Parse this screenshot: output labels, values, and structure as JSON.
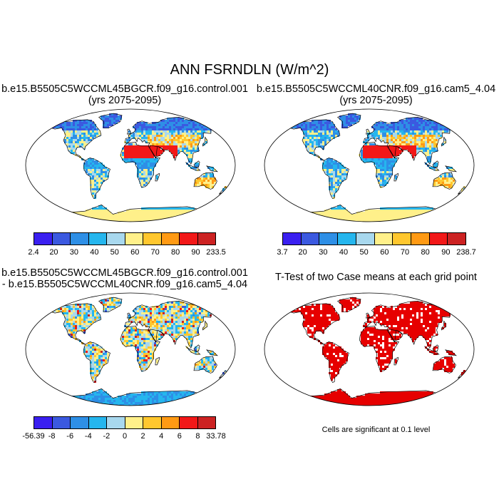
{
  "main_title": "ANN FSRNDLN (W/m^2)",
  "panels": [
    {
      "title_line1": "b.e15.B5505C5WCCML45BGCR.f09_g16.control.001",
      "title_line2": "(yrs 2075-2095)",
      "colorbar": {
        "labels": [
          "2.4",
          "20",
          "30",
          "40",
          "50",
          "60",
          "70",
          "80",
          "90",
          "233.5"
        ],
        "colors": [
          "#3a1ff0",
          "#3b59e0",
          "#2e8fe6",
          "#25b6ee",
          "#a8d8ee",
          "#fff08a",
          "#ffc72e",
          "#ff9a14",
          "#f21818",
          "#cc2222"
        ]
      }
    },
    {
      "title_line1": "b.e15.B5505C5WCCML40CNR.f09_g16.cam5_4.04",
      "title_line2": "(yrs 2075-2095)",
      "colorbar": {
        "labels": [
          "3.7",
          "20",
          "30",
          "40",
          "50",
          "60",
          "70",
          "80",
          "90",
          "238.7"
        ],
        "colors": [
          "#3a1ff0",
          "#3b59e0",
          "#2e8fe6",
          "#25b6ee",
          "#a8d8ee",
          "#fff08a",
          "#ffc72e",
          "#ff9a14",
          "#f21818",
          "#cc2222"
        ]
      }
    },
    {
      "title_line1": "b.e15.B5505C5WCCML45BGCR.f09_g16.control.001",
      "title_line2": "- b.e15.B5505C5WCCML40CNR.f09_g16.cam5_4.04",
      "colorbar": {
        "labels": [
          "-56.39",
          "-8",
          "-6",
          "-4",
          "-2",
          "0",
          "2",
          "4",
          "6",
          "8",
          "33.78"
        ],
        "colors": [
          "#3a1ff0",
          "#3b59e0",
          "#2e8fe6",
          "#25b6ee",
          "#a8d8ee",
          "#fff08a",
          "#ffc72e",
          "#ff9a14",
          "#f21818",
          "#cc2222"
        ]
      }
    },
    {
      "title_line1": "T-Test of two Case means at each grid point",
      "note": "Cells are significant at 0.1 level",
      "signif_color": "#e60000"
    }
  ],
  "colors": {
    "ocean": "#ffffff",
    "coast": "#000000"
  }
}
